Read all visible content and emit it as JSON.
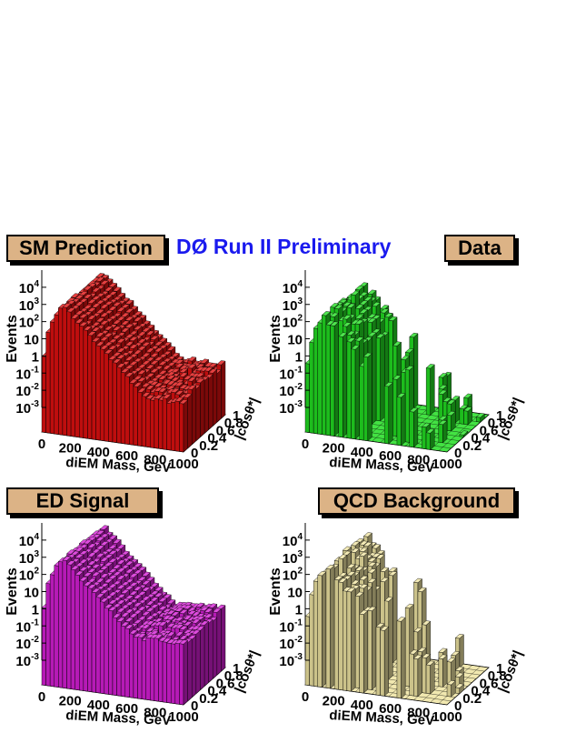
{
  "banner": "DØ Run II Preliminary",
  "chart_data": [
    {
      "type": "bar3d",
      "title": "SM Prediction",
      "color": "#e01010",
      "xlabel": "diEM Mass, GeV",
      "ylabel": "|cosθ*|",
      "zlabel": "Events",
      "xlim": [
        0,
        1000
      ],
      "ylim": [
        0,
        1
      ],
      "zscale": "log",
      "zlim": [
        0.001,
        100000
      ],
      "x_ticks": [
        "0",
        "200",
        "400",
        "600",
        "800",
        "1000"
      ],
      "y_ticks": [
        "0",
        "0.2",
        "0.4",
        "0.6",
        "0.8",
        "1"
      ],
      "z_ticks": [
        {
          "base": "10",
          "exp": "-3",
          "value": 0.001
        },
        {
          "base": "10",
          "exp": "-2",
          "value": 0.01
        },
        {
          "base": "10",
          "exp": "-1",
          "value": 0.1
        },
        {
          "base": "1",
          "exp": "",
          "value": 1
        },
        {
          "base": "10",
          "exp": "",
          "value": 10
        },
        {
          "base": "10",
          "exp": "2",
          "value": 100
        },
        {
          "base": "10",
          "exp": "3",
          "value": 1000
        },
        {
          "base": "10",
          "exp": "4",
          "value": 10000
        }
      ],
      "peak_mass_gev": 150,
      "peak_events": 30000,
      "smooth": true,
      "tail_level_events": 1
    },
    {
      "type": "bar3d",
      "title": "Data",
      "color": "#22dd22",
      "xlabel": "diEM Mass, GeV",
      "ylabel": "|cosθ*|",
      "zlabel": "Events",
      "xlim": [
        0,
        1000
      ],
      "ylim": [
        0,
        1
      ],
      "zscale": "log",
      "zlim": [
        0.001,
        100000
      ],
      "x_ticks": [
        "0",
        "200",
        "400",
        "600",
        "800",
        "1000"
      ],
      "y_ticks": [
        "0",
        "0.2",
        "0.4",
        "0.6",
        "0.8",
        "1"
      ],
      "z_ticks": [
        {
          "base": "10",
          "exp": "-3",
          "value": 0.001
        },
        {
          "base": "10",
          "exp": "-2",
          "value": 0.01
        },
        {
          "base": "10",
          "exp": "-1",
          "value": 0.1
        },
        {
          "base": "1",
          "exp": "",
          "value": 1
        },
        {
          "base": "10",
          "exp": "",
          "value": 10
        },
        {
          "base": "10",
          "exp": "2",
          "value": 100
        },
        {
          "base": "10",
          "exp": "3",
          "value": 1000
        },
        {
          "base": "10",
          "exp": "4",
          "value": 10000
        }
      ],
      "peak_mass_gev": 140,
      "peak_events": 10000,
      "smooth": false,
      "tail_level_events": 0
    },
    {
      "type": "bar3d",
      "title": "ED Signal",
      "color": "#d61ed6",
      "xlabel": "diEM Mass, GeV",
      "ylabel": "|cosθ*|",
      "zlabel": "Events",
      "xlim": [
        0,
        1000
      ],
      "ylim": [
        0,
        1
      ],
      "zscale": "log",
      "zlim": [
        0.001,
        100000
      ],
      "x_ticks": [
        "0",
        "200",
        "400",
        "600",
        "800",
        "1000"
      ],
      "y_ticks": [
        "0",
        "0.2",
        "0.4",
        "0.6",
        "0.8",
        "1"
      ],
      "z_ticks": [
        {
          "base": "10",
          "exp": "-3",
          "value": 0.001
        },
        {
          "base": "10",
          "exp": "-2",
          "value": 0.01
        },
        {
          "base": "10",
          "exp": "-1",
          "value": 0.1
        },
        {
          "base": "1",
          "exp": "",
          "value": 1
        },
        {
          "base": "10",
          "exp": "",
          "value": 10
        },
        {
          "base": "10",
          "exp": "2",
          "value": 100
        },
        {
          "base": "10",
          "exp": "3",
          "value": 1000
        },
        {
          "base": "10",
          "exp": "4",
          "value": 10000
        }
      ],
      "peak_mass_gev": 150,
      "peak_events": 30000,
      "smooth": true,
      "tail_level_events": 3
    },
    {
      "type": "bar3d",
      "title": "QCD Background",
      "color": "#efe4a2",
      "xlabel": "diEM Mass, GeV",
      "ylabel": "|cosθ*|",
      "zlabel": "Events",
      "xlim": [
        0,
        1000
      ],
      "ylim": [
        0,
        1
      ],
      "zscale": "log",
      "zlim": [
        0.001,
        100000
      ],
      "x_ticks": [
        "0",
        "200",
        "400",
        "600",
        "800",
        "1000"
      ],
      "y_ticks": [
        "0",
        "0.2",
        "0.4",
        "0.6",
        "0.8",
        "1"
      ],
      "z_ticks": [
        {
          "base": "10",
          "exp": "-3",
          "value": 0.001
        },
        {
          "base": "10",
          "exp": "-2",
          "value": 0.01
        },
        {
          "base": "10",
          "exp": "-1",
          "value": 0.1
        },
        {
          "base": "1",
          "exp": "",
          "value": 1
        },
        {
          "base": "10",
          "exp": "",
          "value": 10
        },
        {
          "base": "10",
          "exp": "2",
          "value": 100
        },
        {
          "base": "10",
          "exp": "3",
          "value": 1000
        },
        {
          "base": "10",
          "exp": "4",
          "value": 10000
        }
      ],
      "peak_mass_gev": 150,
      "peak_events": 10000,
      "smooth": false,
      "tail_level_events": 0
    }
  ]
}
